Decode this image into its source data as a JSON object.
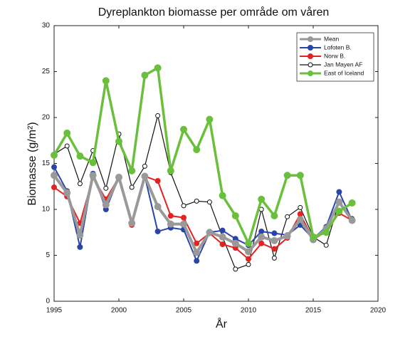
{
  "chart_data": {
    "type": "line",
    "title": "Dyreplankton biomasse per område om våren",
    "x_label": "År",
    "y_label": "Biomasse (g/m²)",
    "x": [
      1995,
      1996,
      1997,
      1998,
      1999,
      2000,
      2001,
      2002,
      2003,
      2004,
      2005,
      2006,
      2007,
      2008,
      2009,
      2010,
      2011,
      2012,
      2013,
      2014,
      2015,
      2016,
      2017,
      2018
    ],
    "xlim": [
      1995,
      2020
    ],
    "xticks": [
      1995,
      2000,
      2005,
      2010,
      2015,
      2020
    ],
    "ylim": [
      0,
      30
    ],
    "yticks": [
      0,
      5,
      10,
      15,
      20,
      25,
      30
    ],
    "grid": false,
    "legend": "upper right",
    "series": [
      {
        "name": "Mean",
        "color": "#999999",
        "marker": "filled",
        "values": [
          13.7,
          11.8,
          7.2,
          13.7,
          10.5,
          13.5,
          8.5,
          13.6,
          10.3,
          8.4,
          8.4,
          5.3,
          7.5,
          7.0,
          6.3,
          5.4,
          7.0,
          6.6,
          7.1,
          8.9,
          6.7,
          7.9,
          10.8,
          8.8
        ]
      },
      {
        "name": "Lofoten B.",
        "color": "#2a45a8",
        "marker": "filled",
        "values": [
          14.6,
          12.0,
          5.9,
          13.9,
          10.0,
          13.5,
          8.5,
          13.6,
          7.6,
          8.0,
          7.8,
          4.4,
          7.5,
          7.7,
          6.8,
          6.1,
          7.6,
          7.4,
          7.2,
          8.3,
          6.8,
          8.1,
          11.9,
          8.8
        ]
      },
      {
        "name": "Norw B.",
        "color": "#e32222",
        "marker": "filled",
        "values": [
          12.4,
          11.4,
          8.5,
          13.5,
          11.1,
          13.5,
          8.3,
          13.6,
          13.1,
          9.3,
          9.1,
          6.3,
          7.4,
          6.2,
          5.8,
          4.6,
          6.3,
          5.7,
          6.9,
          9.5,
          6.7,
          7.6,
          9.6,
          8.8
        ]
      },
      {
        "name": "Jan Mayen AF",
        "color": "#111111",
        "marker": "open",
        "values": [
          16.0,
          16.9,
          12.8,
          16.4,
          12.3,
          18.2,
          12.4,
          14.7,
          20.2,
          14.0,
          10.4,
          10.9,
          10.8,
          7.0,
          3.5,
          4.0,
          10.0,
          4.7,
          9.2,
          10.2,
          7.0,
          6.1,
          10.8,
          9.0
        ]
      },
      {
        "name": "East of Iceland",
        "color": "#6abf3c",
        "marker": "filled",
        "values": [
          15.9,
          18.3,
          15.8,
          15.1,
          24.0,
          17.4,
          14.2,
          24.6,
          25.4,
          14.2,
          18.7,
          16.5,
          19.8,
          11.5,
          9.3,
          6.3,
          11.1,
          9.3,
          13.7,
          13.7,
          7.0,
          7.5,
          9.8,
          10.7
        ]
      }
    ]
  }
}
